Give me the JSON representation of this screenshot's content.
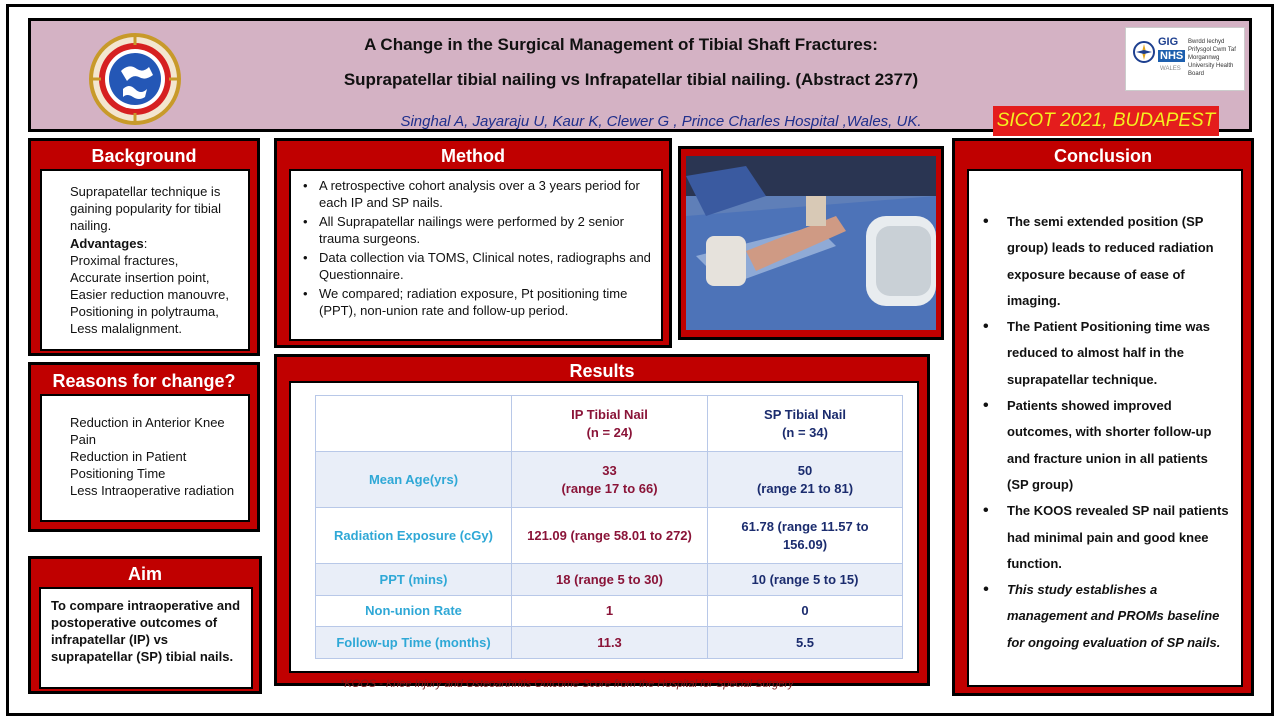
{
  "header": {
    "title_line1": "A Change in the Surgical Management of Tibial Shaft Fractures:",
    "title_line2": "Suprapatellar  tibial nailing vs Infrapatellar tibial nailing. (Abstract 2377)",
    "authors": "Singhal A, Jayaraju U, Kaur K, Clewer G , Prince Charles Hospital ,Wales, UK.",
    "conference": "SICOT 2021, BUDAPEST",
    "nhs_logo": {
      "gig": "GIG",
      "nhs": "NHS",
      "wales": "WALES",
      "org_text": "Bwrdd Iechyd Prifysgol Cwm Taf Morgannwg University Health Board"
    },
    "society_logo_icon": "globe-emblem-icon"
  },
  "background": {
    "heading": "Background",
    "intro": "Suprapatellar technique is gaining popularity for tibial nailing.",
    "advantages_label": "Advantages",
    "advantages_colon": ":",
    "advantages": [
      "Proximal fractures,",
      "Accurate insertion point,",
      "Easier reduction manouvre,",
      "Positioning in polytrauma,",
      "Less malalignment."
    ]
  },
  "reasons": {
    "heading": "Reasons for change?",
    "items": [
      "Reduction in Anterior Knee Pain",
      "Reduction in Patient Positioning Time",
      "Less Intraoperative radiation"
    ]
  },
  "aim": {
    "heading": "Aim",
    "text": "To compare intraoperative and postoperative outcomes of infrapatellar (IP) vs suprapatellar (SP) tibial nails."
  },
  "method": {
    "heading": "Method",
    "items": [
      "A retrospective cohort analysis over a 3 years period for each IP and SP nails.",
      "All Suprapatellar nailings were  performed by 2 senior trauma surgeons.",
      "Data collection via TOMS, Clinical notes, radiographs and Questionnaire.",
      "We compared; radiation exposure, Pt positioning time (PPT), non-union rate and follow-up period."
    ]
  },
  "results": {
    "heading": "Results",
    "col_ip": "IP Tibial Nail",
    "col_ip_n": "(n = 24)",
    "col_sp": "SP Tibial Nail",
    "col_sp_n": "(n = 34)",
    "rows": [
      {
        "label": "Mean Age(yrs)",
        "ip": "33",
        "ip2": "(range 17 to 66)",
        "sp": "50",
        "sp2": "(range 21 to 81)"
      },
      {
        "label": "Radiation Exposure (cGy)",
        "ip": "121.09  (range 58.01 to 272)",
        "ip2": "",
        "sp": "61.78  (range 11.57 to",
        "sp2": "156.09)"
      },
      {
        "label": "PPT (mins)",
        "ip": "18 (range 5 to 30)",
        "ip2": "",
        "sp": "10 (range 5 to 15)",
        "sp2": ""
      },
      {
        "label": "Non-union Rate",
        "ip": "1",
        "ip2": "",
        "sp": "0",
        "sp2": ""
      },
      {
        "label": "Follow-up Time (months)",
        "ip": "11.3",
        "ip2": "",
        "sp": "5.5",
        "sp2": ""
      }
    ],
    "footnote": "*KOOS - Knee Injury and Osteoarthritis Outcome Score from the Hospital for Special Surgery"
  },
  "conclusion": {
    "heading": "Conclusion",
    "items": [
      "The semi extended position (SP group) leads to reduced radiation exposure because of ease of imaging.",
      "The Patient Positioning time was reduced to almost half in the suprapatellar technique.",
      "Patients showed improved outcomes, with shorter follow-up and fracture union in all patients (SP group)",
      "The KOOS revealed SP nail patients had minimal pain and good knee function."
    ],
    "italic_item": "This study establishes a management and PROMs baseline for ongoing evaluation of SP nails."
  },
  "colors": {
    "panel_red": "#c00000",
    "header_bg": "#d4b2c4",
    "conference_bg": "#e41d1d",
    "conference_text": "#f4f020",
    "author_blue": "#1f2f8c",
    "label_cyan": "#2fa8d6",
    "ip_maroon": "#8a1438",
    "sp_navy": "#1b2c6e"
  },
  "photo": {
    "icon": "surgical-photo-icon"
  }
}
